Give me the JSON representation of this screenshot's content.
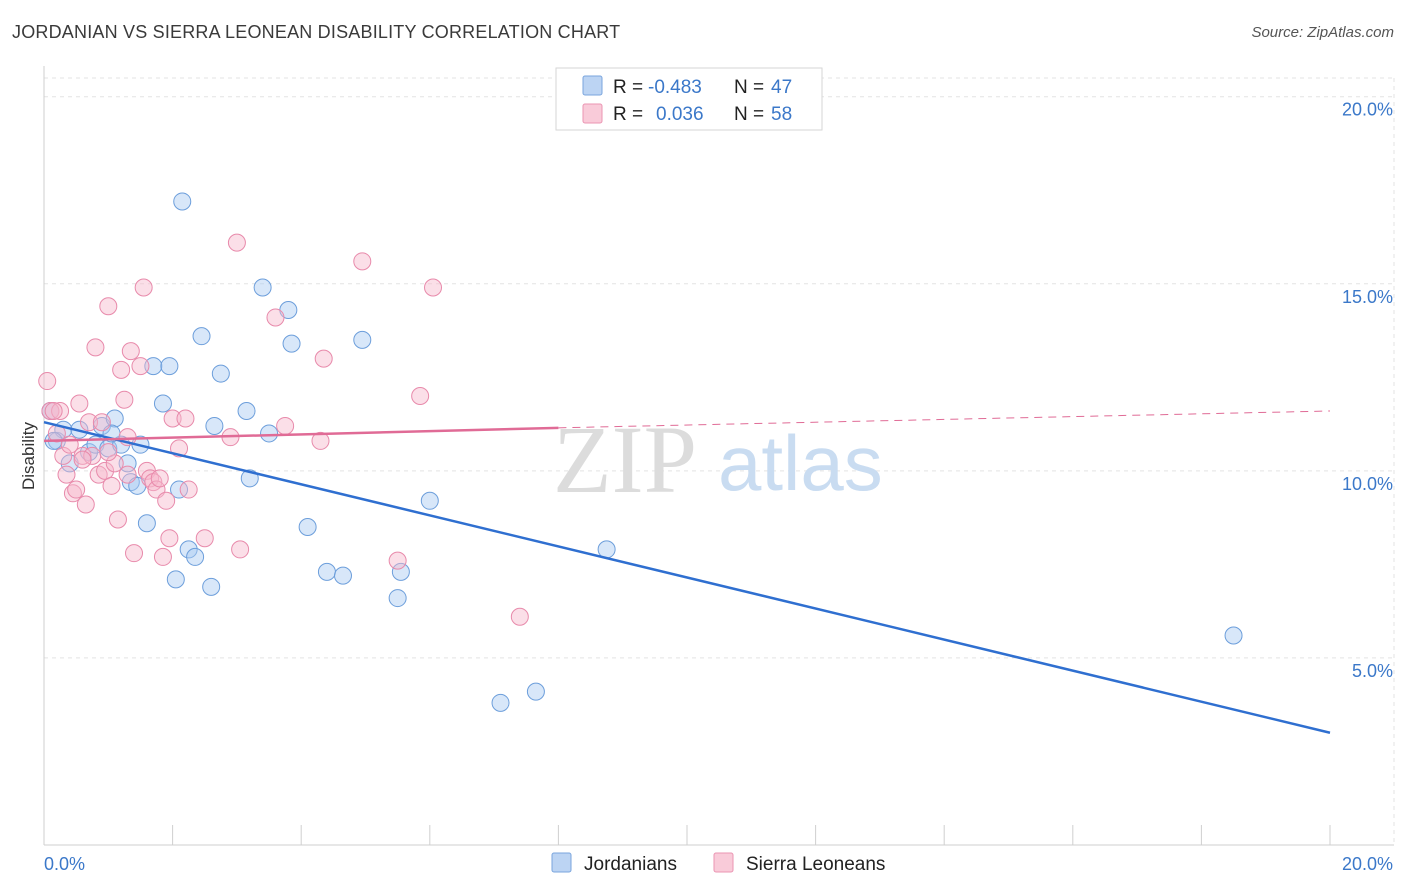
{
  "header": {
    "title": "JORDANIAN VS SIERRA LEONEAN DISABILITY CORRELATION CHART",
    "source": "Source: ZipAtlas.com"
  },
  "watermark": {
    "zip": "ZIP",
    "atlas": "atlas"
  },
  "legend": {
    "rows": [
      {
        "r_label": "R = ",
        "r_value": "-0.483",
        "n_label": "N = ",
        "n_value": "47",
        "color": "#a9c9f2"
      },
      {
        "r_label": "R = ",
        "r_value": "0.036",
        "n_label": "N = ",
        "n_value": "58",
        "color": "#f6b8cc"
      }
    ]
  },
  "bottom_legend": [
    {
      "label": "Jordanians",
      "color": "#a9c9f2"
    },
    {
      "label": "Sierra Leoneans",
      "color": "#f6b8cc"
    }
  ],
  "chart_data": {
    "type": "scatter",
    "ylabel": "Disability",
    "xlabel": "",
    "xlim": [
      0,
      20
    ],
    "ylim": [
      0,
      20.5
    ],
    "x_tick_labels": [
      "0.0%",
      "20.0%"
    ],
    "y_ticks": [
      5,
      10,
      15,
      20
    ],
    "y_tick_labels": [
      "5.0%",
      "10.0%",
      "15.0%",
      "20.0%"
    ],
    "grid": true,
    "legend_position": "top-center",
    "colors": {
      "jordanians": "#a9c9f2",
      "jordanians_line": "#2f6fd0",
      "sierra": "#f6b8cc",
      "sierra_line": "#e06b96"
    },
    "series": [
      {
        "name": "Jordanians",
        "points": [
          [
            0.1,
            11.6
          ],
          [
            0.2,
            10.8
          ],
          [
            0.3,
            11.1
          ],
          [
            0.4,
            10.2
          ],
          [
            0.55,
            11.1
          ],
          [
            0.7,
            10.5
          ],
          [
            0.8,
            10.7
          ],
          [
            0.9,
            11.2
          ],
          [
            1.0,
            10.6
          ],
          [
            1.1,
            11.4
          ],
          [
            1.2,
            10.7
          ],
          [
            1.3,
            10.2
          ],
          [
            1.35,
            9.7
          ],
          [
            1.5,
            10.7
          ],
          [
            1.45,
            9.6
          ],
          [
            1.6,
            8.6
          ],
          [
            1.7,
            12.8
          ],
          [
            1.85,
            11.8
          ],
          [
            1.95,
            12.8
          ],
          [
            2.05,
            7.1
          ],
          [
            2.1,
            9.5
          ],
          [
            2.15,
            17.2
          ],
          [
            2.25,
            7.9
          ],
          [
            2.35,
            7.7
          ],
          [
            2.45,
            13.6
          ],
          [
            2.6,
            6.9
          ],
          [
            2.65,
            11.2
          ],
          [
            2.75,
            12.6
          ],
          [
            3.15,
            11.6
          ],
          [
            3.2,
            9.8
          ],
          [
            3.4,
            14.9
          ],
          [
            3.5,
            11.0
          ],
          [
            3.8,
            14.3
          ],
          [
            3.85,
            13.4
          ],
          [
            4.1,
            8.5
          ],
          [
            4.4,
            7.3
          ],
          [
            4.65,
            7.2
          ],
          [
            4.95,
            13.5
          ],
          [
            5.5,
            6.6
          ],
          [
            5.55,
            7.3
          ],
          [
            6.0,
            9.2
          ],
          [
            7.1,
            3.8
          ],
          [
            7.65,
            4.1
          ],
          [
            8.75,
            7.9
          ],
          [
            18.5,
            5.6
          ],
          [
            0.15,
            10.8
          ],
          [
            1.05,
            11.0
          ]
        ]
      },
      {
        "name": "Sierra Leoneans",
        "points": [
          [
            0.05,
            12.4
          ],
          [
            0.1,
            11.6
          ],
          [
            0.2,
            11.0
          ],
          [
            0.25,
            11.6
          ],
          [
            0.3,
            10.4
          ],
          [
            0.35,
            9.9
          ],
          [
            0.4,
            10.7
          ],
          [
            0.45,
            9.4
          ],
          [
            0.5,
            9.5
          ],
          [
            0.55,
            11.8
          ],
          [
            0.6,
            10.4
          ],
          [
            0.65,
            9.1
          ],
          [
            0.7,
            11.3
          ],
          [
            0.75,
            10.4
          ],
          [
            0.8,
            13.3
          ],
          [
            0.85,
            9.9
          ],
          [
            0.9,
            11.3
          ],
          [
            0.95,
            10.0
          ],
          [
            1.0,
            14.4
          ],
          [
            1.05,
            9.6
          ],
          [
            1.1,
            10.2
          ],
          [
            1.15,
            8.7
          ],
          [
            1.2,
            12.7
          ],
          [
            1.25,
            11.9
          ],
          [
            1.3,
            10.9
          ],
          [
            1.35,
            13.2
          ],
          [
            1.4,
            7.8
          ],
          [
            1.5,
            12.8
          ],
          [
            1.55,
            14.9
          ],
          [
            1.6,
            10.0
          ],
          [
            1.65,
            9.8
          ],
          [
            1.7,
            9.7
          ],
          [
            1.75,
            9.5
          ],
          [
            1.8,
            9.8
          ],
          [
            1.85,
            7.7
          ],
          [
            1.9,
            9.2
          ],
          [
            1.95,
            8.2
          ],
          [
            2.0,
            11.4
          ],
          [
            2.1,
            10.6
          ],
          [
            2.2,
            11.4
          ],
          [
            2.25,
            9.5
          ],
          [
            2.5,
            8.2
          ],
          [
            2.9,
            10.9
          ],
          [
            3.0,
            16.1
          ],
          [
            3.05,
            7.9
          ],
          [
            3.6,
            14.1
          ],
          [
            3.75,
            11.2
          ],
          [
            4.3,
            10.8
          ],
          [
            4.35,
            13.0
          ],
          [
            4.95,
            15.6
          ],
          [
            5.5,
            7.6
          ],
          [
            5.85,
            12.0
          ],
          [
            6.05,
            14.9
          ],
          [
            7.4,
            6.1
          ],
          [
            0.15,
            11.6
          ],
          [
            0.6,
            10.3
          ],
          [
            1.0,
            10.5
          ],
          [
            1.3,
            9.9
          ]
        ]
      }
    ],
    "trend_lines": [
      {
        "series": "Jordanians",
        "x": [
          0,
          20
        ],
        "y": [
          11.3,
          3.0
        ],
        "style": "solid"
      },
      {
        "series": "Sierra Leoneans",
        "x": [
          0,
          8
        ],
        "y": [
          10.8,
          11.15
        ],
        "style": "solid"
      },
      {
        "series": "Sierra Leoneans",
        "x": [
          8,
          20
        ],
        "y": [
          11.15,
          11.6
        ],
        "style": "dashed"
      }
    ]
  }
}
